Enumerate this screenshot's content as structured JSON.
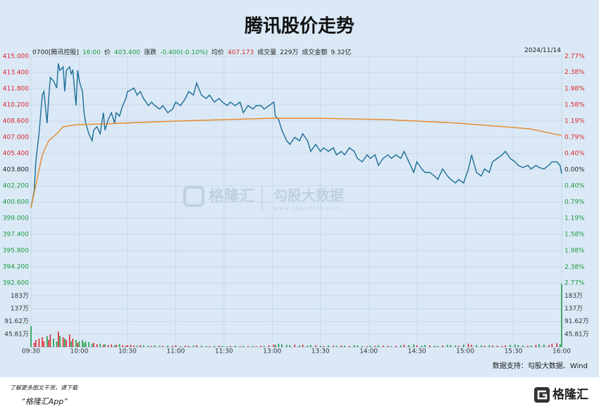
{
  "header": {
    "title": "腾讯股价走势"
  },
  "info": {
    "code": "0700[腾讯控股]",
    "time": "16:00",
    "price_label": "价",
    "price": "403.400",
    "change_label": "涨跌",
    "change": "-0.400(-0.10%)",
    "avg_label": "均价",
    "avg": "407.173",
    "volume_label": "成交量",
    "volume": "229万",
    "amount_label": "成交金额",
    "amount": "9.32亿",
    "date": "2024/11/14"
  },
  "chart_data": [
    {
      "type": "line",
      "xlim": [
        0,
        330
      ],
      "xticks": [
        {
          "value": 0,
          "label": "09:30"
        },
        {
          "value": 30,
          "label": "10:00"
        },
        {
          "value": 60,
          "label": "10:30"
        },
        {
          "value": 90,
          "label": "11:00"
        },
        {
          "value": 120,
          "label": "11:30"
        },
        {
          "value": 150,
          "label": "13:00"
        },
        {
          "value": 180,
          "label": "13:30"
        },
        {
          "value": 210,
          "label": "14:00"
        },
        {
          "value": 240,
          "label": "14:30"
        },
        {
          "value": 270,
          "label": "15:00"
        },
        {
          "value": 300,
          "label": "15:30"
        },
        {
          "value": 330,
          "label": "16:00"
        }
      ],
      "ylim": [
        392.6,
        415
      ],
      "yticks": [
        {
          "value": 392.6,
          "label": "392.600"
        },
        {
          "value": 394.2,
          "label": "394.200"
        },
        {
          "value": 395.8,
          "label": "395.800"
        },
        {
          "value": 397.4,
          "label": "397.400"
        },
        {
          "value": 399,
          "label": "399.000"
        },
        {
          "value": 400.6,
          "label": "400.600"
        },
        {
          "value": 402.2,
          "label": "402.200"
        },
        {
          "value": 403.8,
          "label": "403.800"
        },
        {
          "value": 405.4,
          "label": "405.400"
        },
        {
          "value": 407,
          "label": "407.000"
        },
        {
          "value": 408.6,
          "label": "408.600"
        },
        {
          "value": 410.2,
          "label": "410.200"
        },
        {
          "value": 411.8,
          "label": "411.800"
        },
        {
          "value": 413.4,
          "label": "413.400"
        },
        {
          "value": 415,
          "label": "415.000"
        }
      ],
      "y2lim": [
        -2.77,
        2.77
      ],
      "y2ticks": [
        {
          "value": -2.77,
          "label": "2.77%"
        },
        {
          "value": -2.38,
          "label": "2.38%"
        },
        {
          "value": -1.98,
          "label": "1.98%"
        },
        {
          "value": -1.58,
          "label": "1.58%"
        },
        {
          "value": -1.19,
          "label": "1.19%"
        },
        {
          "value": -0.79,
          "label": "0.79%"
        },
        {
          "value": -0.4,
          "label": "0.40%"
        },
        {
          "value": 0,
          "label": "0.00%"
        },
        {
          "value": 0.4,
          "label": "0.40%"
        },
        {
          "value": 0.79,
          "label": "0.79%"
        },
        {
          "value": 1.19,
          "label": "1.19%"
        },
        {
          "value": 1.58,
          "label": "1.58%"
        },
        {
          "value": 1.98,
          "label": "1.98%"
        },
        {
          "value": 2.38,
          "label": "2.38%"
        },
        {
          "value": 2.77,
          "label": "2.77%"
        }
      ],
      "grid": true,
      "up_color": "#d9262b",
      "down_color": "#1c9a3f",
      "flat_color": "#222222",
      "series": [
        {
          "color": "#1d6d94",
          "x": [
            0,
            2,
            3,
            5,
            7,
            8,
            10,
            11,
            12,
            14,
            16,
            17,
            18,
            20,
            21,
            22,
            24,
            25,
            26,
            28,
            29,
            30,
            32,
            33,
            34,
            36,
            38,
            39,
            41,
            43,
            45,
            46,
            48,
            50,
            52,
            53,
            55,
            57,
            59,
            60,
            62,
            64,
            66,
            68,
            70,
            73,
            75,
            77,
            80,
            82,
            85,
            88,
            90,
            93,
            96,
            98,
            101,
            103,
            106,
            109,
            111,
            114,
            117,
            119,
            122,
            124,
            127,
            130,
            132,
            135,
            138,
            140,
            143,
            145,
            148,
            151,
            152,
            154,
            156,
            159,
            161,
            164,
            167,
            169,
            172,
            174,
            177,
            180,
            182,
            185,
            188,
            190,
            193,
            195,
            198,
            201,
            203,
            206,
            209,
            211,
            214,
            216,
            219,
            222,
            224,
            227,
            230,
            232,
            235,
            238,
            240,
            243,
            245,
            248,
            251,
            253,
            256,
            259,
            261,
            264,
            266,
            269,
            272,
            274,
            277,
            280,
            282,
            285,
            287,
            290,
            293,
            295,
            298,
            301,
            303,
            306,
            309,
            311,
            314,
            316,
            319,
            322,
            324,
            327,
            329,
            330
          ],
          "values": [
            400.04,
            401.78,
            404.57,
            407.35,
            411.17,
            411.52,
            408.39,
            410.83,
            412.91,
            412.57,
            411.87,
            414.3,
            413.61,
            413.96,
            411.52,
            413.61,
            413.96,
            413.26,
            413.61,
            410.13,
            413.61,
            412.57,
            411.52,
            409.43,
            408.39,
            407.35,
            406.65,
            407.7,
            408.04,
            407.35,
            409.43,
            407.7,
            408.74,
            409.43,
            408.39,
            409.43,
            409.09,
            410.13,
            410.83,
            411.52,
            411.66,
            411.87,
            411.17,
            411.52,
            410.83,
            410.13,
            410.48,
            410.13,
            409.78,
            410.13,
            409.43,
            409.78,
            410.48,
            410.13,
            410.83,
            411.52,
            411.17,
            412.36,
            411.17,
            410.83,
            411.17,
            410.48,
            410.83,
            410.48,
            410.13,
            410.48,
            410.13,
            410.48,
            409.43,
            410.13,
            409.78,
            410.13,
            410.13,
            409.78,
            410.13,
            410.48,
            409.09,
            408.74,
            407.7,
            406.65,
            406.3,
            407,
            406.65,
            407.35,
            406.65,
            405.61,
            406.3,
            405.61,
            405.96,
            405.61,
            405.96,
            405.26,
            405.61,
            405.26,
            405.96,
            405.61,
            404.91,
            404.57,
            405.26,
            404.91,
            405.26,
            404.22,
            404.91,
            405.26,
            404.91,
            405.26,
            404.91,
            405.61,
            404.57,
            403.52,
            404.57,
            403.87,
            403.52,
            403.52,
            403.17,
            402.83,
            403.87,
            403.17,
            402.83,
            402.48,
            402.83,
            402.48,
            403.87,
            405.26,
            403.52,
            403.17,
            403.87,
            403.52,
            404.57,
            404.91,
            405.26,
            405.61,
            404.91,
            404.57,
            404.22,
            404.01,
            404.22,
            403.87,
            404.22,
            404.01,
            403.87,
            404.22,
            404.57,
            404.57,
            404.22,
            403.4
          ]
        },
        {
          "color": "#e58a2b",
          "x": [
            0,
            7,
            11,
            16,
            20,
            29,
            46,
            90,
            150,
            178,
            222,
            266,
            310,
            330
          ],
          "values": [
            400.04,
            405.26,
            406.65,
            407.35,
            408.04,
            408.25,
            408.32,
            408.6,
            408.88,
            408.88,
            408.74,
            408.39,
            407.84,
            407.17
          ]
        }
      ]
    },
    {
      "type": "bar",
      "x": [
        0,
        2,
        3,
        5,
        7,
        8,
        10,
        11,
        12,
        14,
        16,
        17,
        18,
        20,
        21,
        22,
        24,
        25,
        26,
        28,
        29,
        30,
        32,
        33,
        34,
        36,
        38,
        39,
        41,
        43,
        45,
        46,
        48,
        50,
        52,
        53,
        55,
        57,
        59,
        60,
        62,
        64,
        66,
        68,
        70,
        73,
        75,
        77,
        80,
        82,
        85,
        88,
        90,
        93,
        96,
        98,
        101,
        103,
        106,
        109,
        111,
        114,
        117,
        119,
        122,
        124,
        127,
        130,
        132,
        135,
        138,
        140,
        143,
        145,
        148,
        151,
        152,
        154,
        156,
        159,
        161,
        164,
        167,
        169,
        172,
        174,
        177,
        180,
        182,
        185,
        188,
        190,
        193,
        195,
        198,
        201,
        203,
        206,
        209,
        211,
        214,
        216,
        219,
        222,
        224,
        227,
        230,
        232,
        235,
        238,
        240,
        243,
        245,
        248,
        251,
        253,
        256,
        259,
        261,
        264,
        266,
        269,
        272,
        274,
        277,
        280,
        282,
        285,
        287,
        290,
        293,
        295,
        298,
        301,
        303,
        306,
        309,
        311,
        314,
        316,
        319,
        322,
        324,
        327,
        329,
        330
      ],
      "values": [
        75,
        15,
        25,
        30,
        35,
        20,
        40,
        25,
        45,
        30,
        20,
        55,
        40,
        35,
        30,
        25,
        45,
        20,
        30,
        25,
        15,
        20,
        25,
        15,
        20,
        18,
        12,
        15,
        10,
        12,
        8,
        10,
        7,
        9,
        6,
        8,
        10,
        7,
        5,
        6,
        8,
        6,
        5,
        7,
        6,
        5,
        4,
        6,
        5,
        4,
        5,
        4,
        6,
        3,
        5,
        4,
        6,
        7,
        5,
        4,
        3,
        4,
        5,
        4,
        3,
        4,
        5,
        3,
        4,
        3,
        4,
        3,
        5,
        4,
        6,
        9,
        8,
        12,
        10,
        8,
        7,
        9,
        6,
        8,
        5,
        7,
        6,
        5,
        4,
        6,
        5,
        4,
        6,
        5,
        4,
        7,
        5,
        4,
        3,
        5,
        4,
        6,
        5,
        4,
        3,
        5,
        6,
        8,
        7,
        9,
        6,
        5,
        7,
        6,
        5,
        4,
        6,
        8,
        7,
        6,
        5,
        9,
        12,
        8,
        7,
        6,
        5,
        7,
        6,
        5,
        4,
        6,
        8,
        9,
        7,
        6,
        5,
        6,
        8,
        10,
        9,
        7,
        12,
        14,
        10,
        225
      ],
      "ylim": [
        0,
        229
      ],
      "yticks": [
        {
          "value": 45.81,
          "label": "45.81万"
        },
        {
          "value": 91.62,
          "label": "91.62万"
        },
        {
          "value": 137,
          "label": "137万"
        },
        {
          "value": 183,
          "label": "183万"
        }
      ],
      "up_color": "#d9262b",
      "down_color": "#1c9a3f"
    }
  ],
  "watermark": {
    "brand": "格隆汇",
    "product": "勾股大数据",
    "url": "www.gogudata.com"
  },
  "source": "数据支持：勾股大数据、Wind",
  "footer": {
    "text": "了解更多图文干货，请下载",
    "app": "“格隆汇App”",
    "logo": "格隆汇"
  }
}
